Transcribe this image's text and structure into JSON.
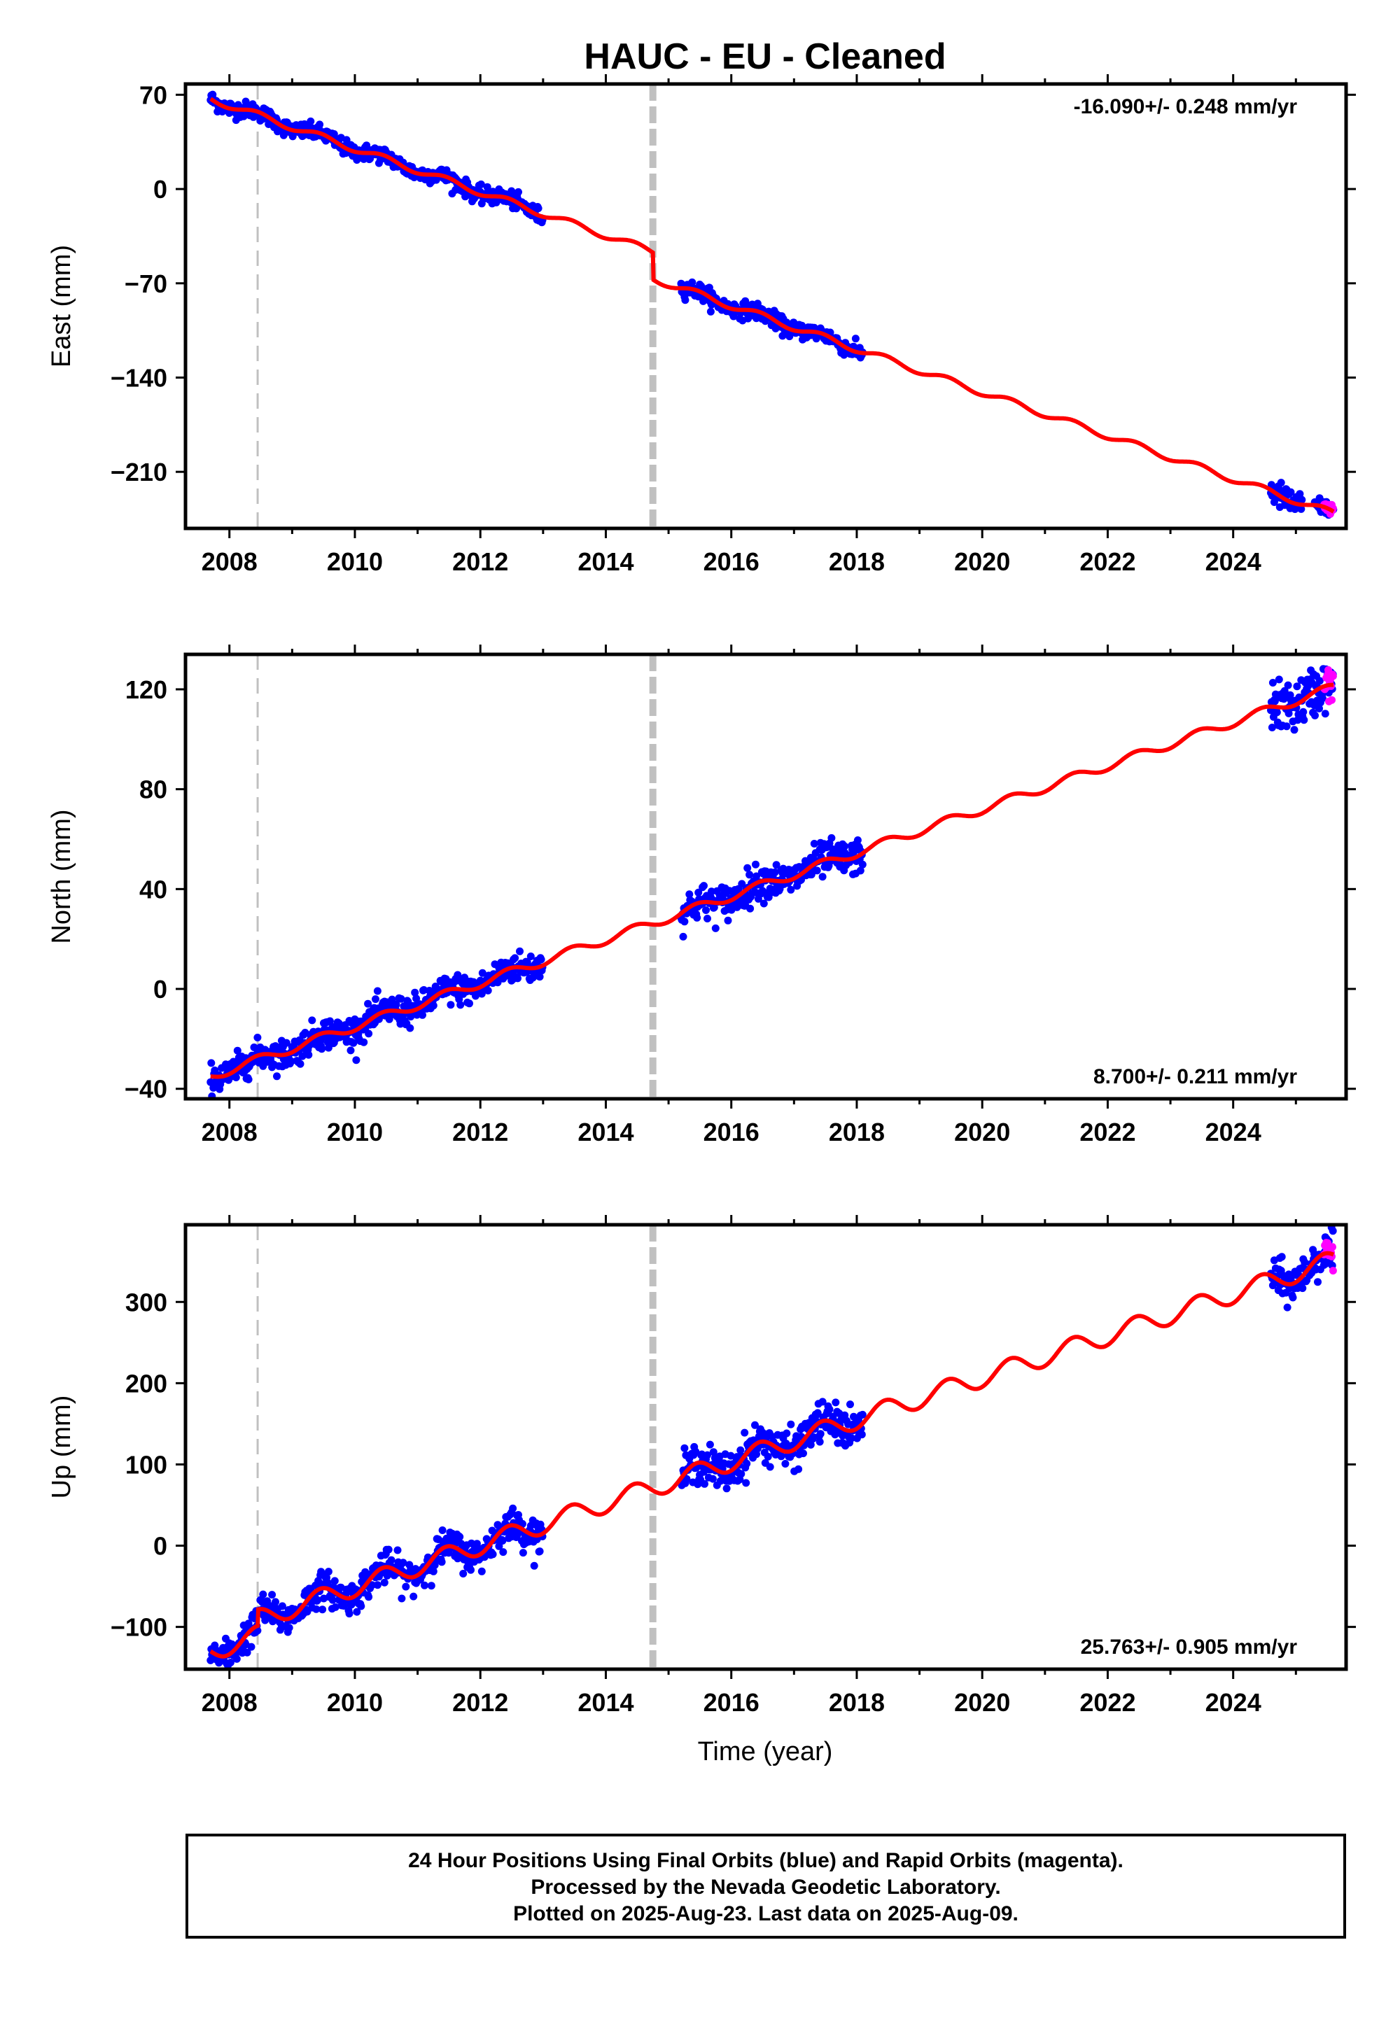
{
  "title": "HAUC  - EU - Cleaned",
  "x_label": "Time (year)",
  "footer": {
    "line1": "24 Hour Positions Using Final Orbits (blue) and Rapid Orbits (magenta).",
    "line2": "Processed by the Nevada Geodetic Laboratory.",
    "line3": "Plotted on 2025-Aug-23. Last data on 2025-Aug-09."
  },
  "colors": {
    "final": "#0000ff",
    "rapid": "#ff00ff",
    "model": "#ff0000",
    "event_line": "#c0c0c0"
  },
  "chart_data": [
    {
      "type": "scatter",
      "component": "east",
      "ylabel": "East (mm)",
      "rate": "-16.090+/- 0.248 mm/yr",
      "rate_position": "top-right",
      "xlim": [
        2007.3,
        2025.8
      ],
      "ylim": [
        -252,
        78
      ],
      "x_ticks": [
        2008,
        2010,
        2012,
        2014,
        2016,
        2018,
        2020,
        2022,
        2024
      ],
      "y_ticks": [
        70,
        0,
        -70,
        -140,
        -210
      ],
      "events": [
        {
          "x": 2008.45,
          "style": "thin-dashed"
        },
        {
          "x": 2014.75,
          "style": "thick-dashed"
        }
      ],
      "trend": {
        "t0": 2007.7,
        "v0": 67,
        "rate": -16.09,
        "offsets": [
          {
            "x": 2014.75,
            "dy": -20
          }
        ],
        "seasonal_amp": 2.5
      },
      "data_ranges": [
        {
          "from": 2007.7,
          "to": 2013.0,
          "scatter": 3,
          "series": "final"
        },
        {
          "from": 2015.2,
          "to": 2018.1,
          "scatter": 3,
          "series": "final"
        },
        {
          "from": 2024.6,
          "to": 2025.1,
          "scatter": 5,
          "series": "final"
        },
        {
          "from": 2025.3,
          "to": 2025.6,
          "scatter": 3,
          "series": "final"
        },
        {
          "from": 2025.45,
          "to": 2025.6,
          "scatter": 2,
          "series": "rapid"
        }
      ]
    },
    {
      "type": "scatter",
      "component": "north",
      "ylabel": "North (mm)",
      "rate": "8.700+/- 0.211 mm/yr",
      "rate_position": "bottom-right",
      "xlim": [
        2007.3,
        2025.8
      ],
      "ylim": [
        -44,
        134
      ],
      "x_ticks": [
        2008,
        2010,
        2012,
        2014,
        2016,
        2018,
        2020,
        2022,
        2024
      ],
      "y_ticks": [
        120,
        80,
        40,
        0,
        -40
      ],
      "events": [
        {
          "x": 2008.45,
          "style": "thin-dashed"
        },
        {
          "x": 2014.75,
          "style": "thick-dashed"
        }
      ],
      "trend": {
        "t0": 2007.7,
        "v0": -35,
        "rate": 8.7,
        "offsets": [],
        "seasonal_amp": 1.8
      },
      "data_ranges": [
        {
          "from": 2007.7,
          "to": 2013.0,
          "scatter": 3,
          "series": "final"
        },
        {
          "from": 2015.2,
          "to": 2018.1,
          "scatter": 3.5,
          "series": "final"
        },
        {
          "from": 2024.6,
          "to": 2025.6,
          "scatter": 5,
          "series": "final"
        },
        {
          "from": 2025.45,
          "to": 2025.6,
          "scatter": 3,
          "series": "rapid"
        }
      ]
    },
    {
      "type": "scatter",
      "component": "up",
      "ylabel": "Up (mm)",
      "rate": "25.763+/- 0.905 mm/yr",
      "rate_position": "bottom-right",
      "xlim": [
        2007.3,
        2025.8
      ],
      "ylim": [
        -152,
        395
      ],
      "x_ticks": [
        2008,
        2010,
        2012,
        2014,
        2016,
        2018,
        2020,
        2022,
        2024
      ],
      "y_ticks": [
        300,
        200,
        100,
        0,
        -100
      ],
      "events": [
        {
          "x": 2008.45,
          "style": "thin-dashed"
        },
        {
          "x": 2014.75,
          "style": "thick-dashed"
        }
      ],
      "trend": {
        "t0": 2007.7,
        "v0": -130,
        "rate": 25.763,
        "offsets": [
          {
            "x": 2008.45,
            "dy": 20
          }
        ],
        "seasonal_amp": 12
      },
      "data_ranges": [
        {
          "from": 2007.7,
          "to": 2013.0,
          "scatter": 10,
          "series": "final"
        },
        {
          "from": 2015.2,
          "to": 2018.1,
          "scatter": 12,
          "series": "final"
        },
        {
          "from": 2024.6,
          "to": 2025.6,
          "scatter": 12,
          "series": "final"
        },
        {
          "from": 2025.45,
          "to": 2025.6,
          "scatter": 8,
          "series": "rapid"
        }
      ]
    }
  ]
}
